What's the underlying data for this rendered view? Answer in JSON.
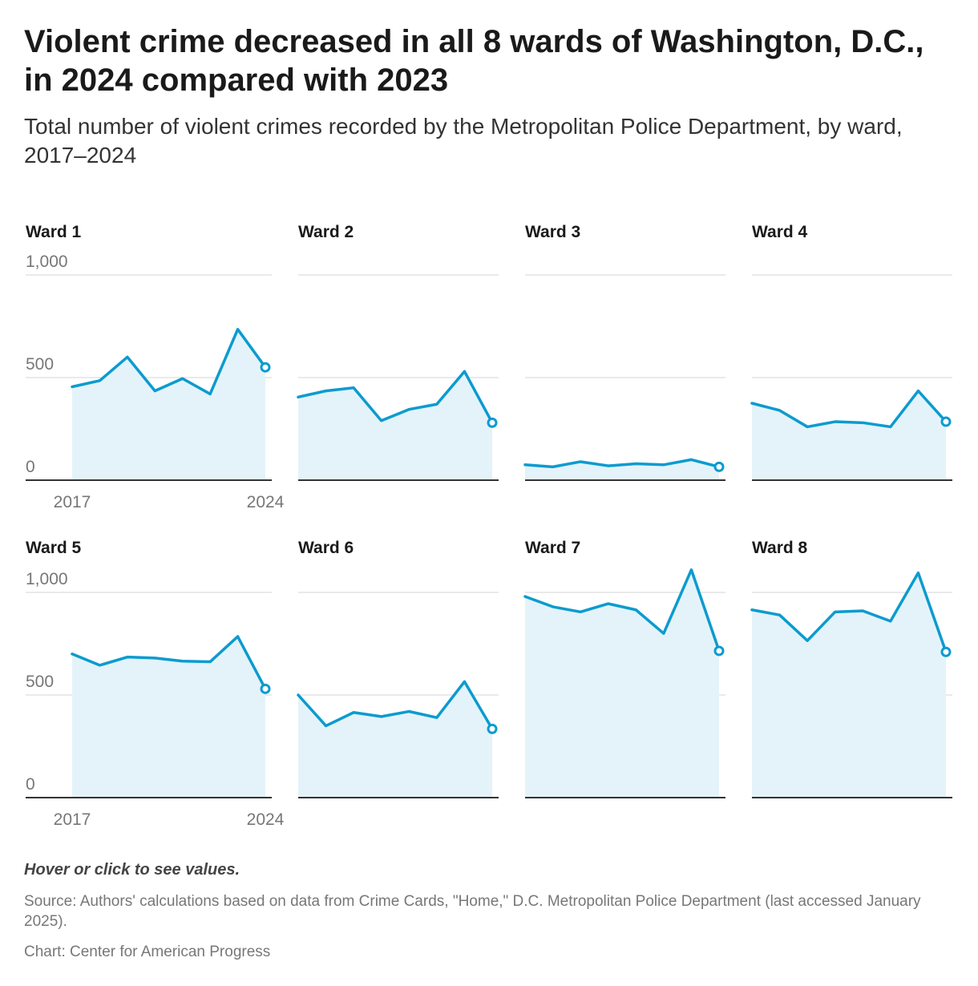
{
  "header": {
    "title": "Violent crime decreased in all 8 wards of Washington, D.C., in 2024 compared with 2023",
    "subtitle": "Total number of violent crimes recorded by the Metropolitan Police Department, by ward, 2017–2024"
  },
  "footer": {
    "hover_note": "Hover or click to see values.",
    "source": "Source: Authors' calculations based on data from Crime Cards, \"Home,\" D.C. Metropolitan Police Department (last accessed January 2025).",
    "credit": "Chart: Center for American Progress"
  },
  "colors": {
    "line": "#0b9bcf",
    "area": "#e4f3fa",
    "grid": "#dddddd",
    "baseline": "#333333",
    "tick_text": "#777777"
  },
  "chart_data": {
    "type": "area",
    "layout": "small-multiples",
    "title": "Violent crime decreased in all 8 wards of Washington, D.C., in 2024 compared with 2023",
    "x": [
      2017,
      2018,
      2019,
      2020,
      2021,
      2022,
      2023,
      2024
    ],
    "x_tick_labels": [
      "2017",
      "2024"
    ],
    "ylim": [
      0,
      1000
    ],
    "y_ticks": [
      0,
      500,
      1000
    ],
    "y_tick_labels": [
      "0",
      "500",
      "1,000"
    ],
    "grid": true,
    "series": [
      {
        "name": "Ward 1",
        "values": [
          455,
          485,
          600,
          435,
          495,
          420,
          735,
          550
        ]
      },
      {
        "name": "Ward 2",
        "values": [
          405,
          435,
          450,
          290,
          345,
          370,
          530,
          280
        ]
      },
      {
        "name": "Ward 3",
        "values": [
          75,
          65,
          90,
          70,
          80,
          75,
          100,
          65
        ]
      },
      {
        "name": "Ward 4",
        "values": [
          375,
          340,
          260,
          285,
          280,
          260,
          435,
          285
        ]
      },
      {
        "name": "Ward 5",
        "values": [
          700,
          645,
          685,
          680,
          665,
          662,
          785,
          530
        ]
      },
      {
        "name": "Ward 6",
        "values": [
          500,
          350,
          415,
          395,
          420,
          390,
          565,
          335
        ]
      },
      {
        "name": "Ward 7",
        "values": [
          980,
          930,
          905,
          945,
          915,
          800,
          1110,
          715
        ]
      },
      {
        "name": "Ward 8",
        "values": [
          915,
          890,
          765,
          905,
          910,
          860,
          1095,
          710
        ]
      }
    ]
  }
}
